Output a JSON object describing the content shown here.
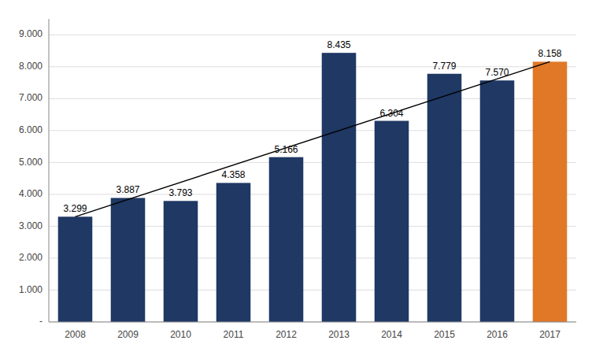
{
  "chart_data": {
    "type": "bar",
    "categories": [
      "2008",
      "2009",
      "2010",
      "2011",
      "2012",
      "2013",
      "2014",
      "2015",
      "2016",
      "2017"
    ],
    "values": [
      3299,
      3887,
      3793,
      4358,
      5166,
      8435,
      6304,
      7779,
      7570,
      8158
    ],
    "value_labels": [
      "3.299",
      "3.887",
      "3.793",
      "4.358",
      "5.166",
      "8.435",
      "6.304",
      "7.779",
      "7.570",
      "8.158"
    ],
    "data_labels": true,
    "colors": [
      "#1f3864",
      "#1f3864",
      "#1f3864",
      "#1f3864",
      "#1f3864",
      "#1f3864",
      "#1f3864",
      "#1f3864",
      "#1f3864",
      "#e07828"
    ],
    "trendline": [
      3299,
      8158
    ],
    "ylim": [
      0,
      9500
    ],
    "yticks": [
      {
        "value": 0,
        "label": "-"
      },
      {
        "value": 1000,
        "label": "1.000"
      },
      {
        "value": 2000,
        "label": "2.000"
      },
      {
        "value": 3000,
        "label": "3.000"
      },
      {
        "value": 4000,
        "label": "4.000"
      },
      {
        "value": 5000,
        "label": "5.000"
      },
      {
        "value": 6000,
        "label": "6.000"
      },
      {
        "value": 7000,
        "label": "7.000"
      },
      {
        "value": 8000,
        "label": "8.000"
      },
      {
        "value": 9000,
        "label": "9.000"
      }
    ],
    "grid": true
  }
}
